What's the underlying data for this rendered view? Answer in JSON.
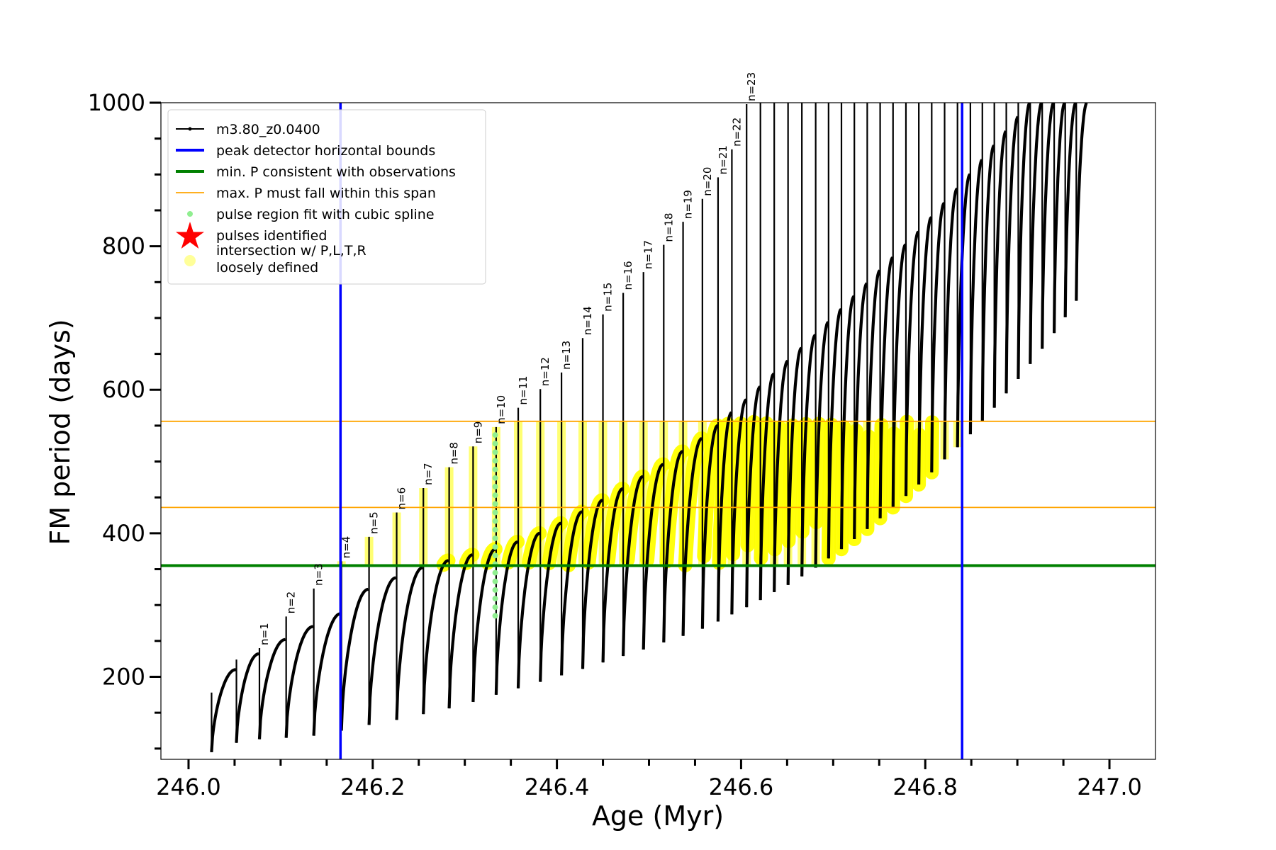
{
  "chart_data": {
    "type": "line",
    "xlabel": "Age (Myr)",
    "ylabel": "FM period (days)",
    "xlim": [
      245.97,
      247.05
    ],
    "ylim": [
      85,
      1000
    ],
    "xticks": [
      246.0,
      246.2,
      246.4,
      246.6,
      246.8,
      247.0
    ],
    "xtick_labels": [
      "246.0",
      "246.2",
      "246.4",
      "246.6",
      "246.8",
      "247.0"
    ],
    "yticks": [
      200,
      400,
      600,
      800,
      1000
    ],
    "ytick_labels": [
      "200",
      "400",
      "600",
      "800",
      "1000"
    ],
    "grid": false,
    "legend_position": "top-left",
    "legend": [
      {
        "label": "m3.80_z0.0400",
        "kind": "line-marker",
        "color": "#000000"
      },
      {
        "label": "peak detector horizontal bounds",
        "kind": "line",
        "color": "#0000ff"
      },
      {
        "label": "min. P consistent with observations",
        "kind": "line",
        "color": "#008000"
      },
      {
        "label": "max. P must fall within this span",
        "kind": "line-thin",
        "color": "#ffa500"
      },
      {
        "label": "pulse region fit with cubic spline",
        "kind": "dot",
        "color": "#90ee90"
      },
      {
        "label": "pulses identified",
        "kind": "star",
        "color": "#ff0000"
      },
      {
        "label_lines": [
          "intersection w/ P,L,T,R",
          "loosely defined"
        ],
        "kind": "circle",
        "color": "#ffff99"
      }
    ],
    "vertical_lines": [
      {
        "x": 246.165,
        "color": "#0000ff",
        "role": "peak detector horizontal bounds"
      },
      {
        "x": 246.84,
        "color": "#0000ff",
        "role": "peak detector horizontal bounds"
      }
    ],
    "horizontal_lines": [
      {
        "y": 355,
        "color": "#008000",
        "role": "min. P consistent with observations"
      },
      {
        "y": 436,
        "color": "#ffa500",
        "role": "max. P must fall within this span"
      },
      {
        "y": 556,
        "color": "#ffa500",
        "role": "max. P must fall within this span"
      }
    ],
    "pulse_labels": [
      {
        "label": "n=1",
        "x": 246.077,
        "y": 240
      },
      {
        "label": "n=2",
        "x": 246.106,
        "y": 284
      },
      {
        "label": "n=3",
        "x": 246.136,
        "y": 323
      },
      {
        "label": "n=4",
        "x": 246.166,
        "y": 361
      },
      {
        "label": "n=5",
        "x": 246.196,
        "y": 395
      },
      {
        "label": "n=6",
        "x": 246.226,
        "y": 429
      },
      {
        "label": "n=7",
        "x": 246.255,
        "y": 463
      },
      {
        "label": "n=8",
        "x": 246.283,
        "y": 492
      },
      {
        "label": "n=9",
        "x": 246.309,
        "y": 521
      },
      {
        "label": "n=10",
        "x": 246.334,
        "y": 548
      },
      {
        "label": "n=11",
        "x": 246.358,
        "y": 575
      },
      {
        "label": "n=12",
        "x": 246.382,
        "y": 601
      },
      {
        "label": "n=13",
        "x": 246.405,
        "y": 624
      },
      {
        "label": "n=14",
        "x": 246.428,
        "y": 672
      },
      {
        "label": "n=15",
        "x": 246.45,
        "y": 705
      },
      {
        "label": "n=16",
        "x": 246.472,
        "y": 735
      },
      {
        "label": "n=17",
        "x": 246.494,
        "y": 764
      },
      {
        "label": "n=18",
        "x": 246.516,
        "y": 802
      },
      {
        "label": "n=19",
        "x": 246.537,
        "y": 834
      },
      {
        "label": "n=20",
        "x": 246.558,
        "y": 866
      },
      {
        "label": "n=21",
        "x": 246.575,
        "y": 896
      },
      {
        "label": "n=22",
        "x": 246.59,
        "y": 935
      },
      {
        "label": "n=23",
        "x": 246.606,
        "y": 998
      }
    ],
    "series": [
      {
        "name": "m3.80_z0.0400",
        "color": "#000000",
        "pulse_times": [
          246.025,
          246.052,
          246.077,
          246.106,
          246.136,
          246.166,
          246.196,
          246.226,
          246.255,
          246.283,
          246.309,
          246.334,
          246.358,
          246.382,
          246.405,
          246.428,
          246.45,
          246.472,
          246.494,
          246.516,
          246.537,
          246.558,
          246.575,
          246.59,
          246.606,
          246.621,
          246.636,
          246.651,
          246.666,
          246.681,
          246.695,
          246.709,
          246.723,
          246.737,
          246.751,
          246.765,
          246.779,
          246.793,
          246.807,
          246.821,
          246.835,
          246.849,
          246.862,
          246.875,
          246.888,
          246.901,
          246.914,
          246.927,
          246.94,
          246.952,
          246.964
        ],
        "pulse_min_P": [
          95,
          108,
          113,
          115,
          118,
          125,
          133,
          140,
          148,
          156,
          165,
          175,
          184,
          193,
          202,
          211,
          220,
          229,
          238,
          248,
          257,
          267,
          277,
          287,
          297,
          307,
          318,
          328,
          340,
          352,
          365,
          378,
          392,
          406,
          421,
          436,
          452,
          468,
          485,
          503,
          520,
          538,
          556,
          575,
          595,
          615,
          636,
          657,
          679,
          701,
          724
        ],
        "pulse_peak_P": [
          210,
          232,
          252,
          270,
          288,
          322,
          338,
          352,
          362,
          370,
          378,
          388,
          400,
          414,
          430,
          446,
          462,
          479,
          496,
          514,
          532,
          550,
          568,
          586,
          604,
          622,
          640,
          658,
          676,
          694,
          712,
          730,
          748,
          766,
          784,
          802,
          820,
          840,
          860,
          880,
          900,
          920,
          940,
          960,
          980,
          1000,
          1000,
          1000,
          1000,
          1000,
          1000
        ],
        "spike_max_P": [
          178,
          224,
          240,
          284,
          323,
          361,
          395,
          429,
          463,
          492,
          521,
          548,
          575,
          601,
          624,
          672,
          705,
          735,
          764,
          802,
          834,
          866,
          896,
          935,
          998,
          1000,
          1000,
          1000,
          1000,
          1000,
          1000,
          1000,
          1000,
          1000,
          1000,
          1000,
          1000,
          1000,
          1000,
          1000,
          1000,
          1000,
          1000,
          1000,
          1000,
          1000,
          1000,
          1000,
          1000,
          1000,
          1000
        ]
      }
    ],
    "highlights": {
      "intersection_loosely_defined": {
        "color": "#ffff00",
        "P_range": [
          355,
          556
        ],
        "x_range": [
          246.165,
          246.84
        ]
      },
      "pulse_region_cubic_spline": {
        "color": "#90ee90",
        "x": 246.333,
        "P_range": [
          285,
          548
        ]
      }
    }
  }
}
